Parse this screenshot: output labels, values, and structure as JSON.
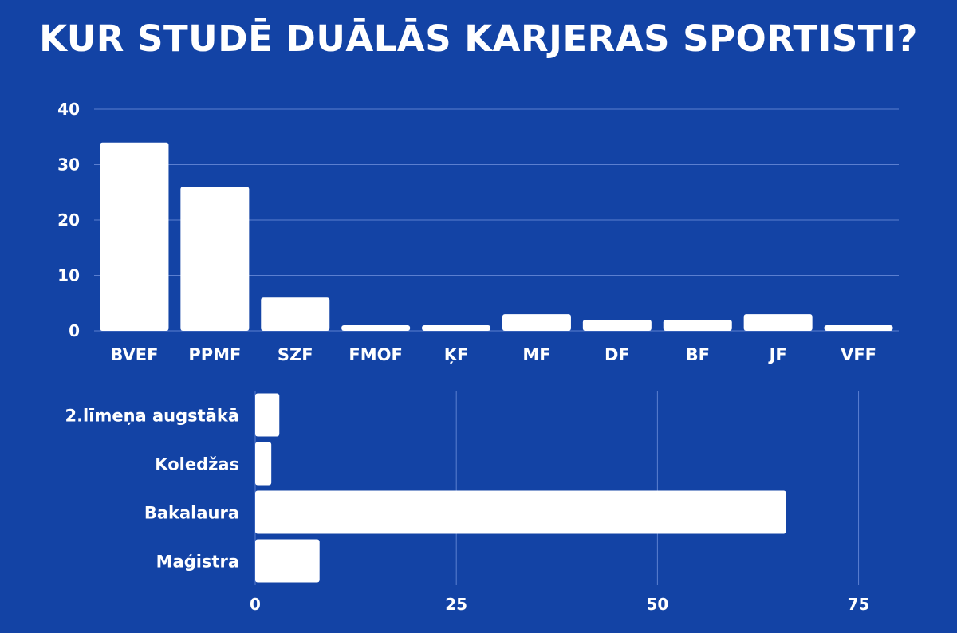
{
  "title": "KUR STUDĒ DUĀLĀS KARJERAS SPORTISTI?",
  "colors": {
    "background": "#1343a5",
    "bar": "#ffffff",
    "grid": "#5b7fd0",
    "text": "#ffffff"
  },
  "chart_data": [
    {
      "type": "bar",
      "orientation": "vertical",
      "categories": [
        "BVEF",
        "PPMF",
        "SZF",
        "FMOF",
        "ĶF",
        "MF",
        "DF",
        "BF",
        "JF",
        "VFF"
      ],
      "values": [
        34,
        26,
        6,
        1,
        1,
        3,
        2,
        2,
        3,
        1
      ],
      "ylim": [
        0,
        40
      ],
      "yticks": [
        0,
        10,
        20,
        30,
        40
      ],
      "grid": true,
      "legend": "none"
    },
    {
      "type": "bar",
      "orientation": "horizontal",
      "categories": [
        "2.līmeņa augstākā",
        "Koledžas",
        "Bakalaura",
        "Maģistra"
      ],
      "values": [
        3,
        2,
        66,
        8
      ],
      "xlim": [
        0,
        80
      ],
      "xticks": [
        0,
        25,
        50,
        75
      ],
      "grid": true,
      "legend": "none"
    }
  ]
}
